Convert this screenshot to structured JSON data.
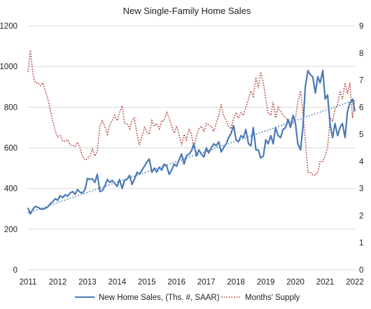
{
  "chart_data": {
    "type": "line",
    "title": "New Single-Family Home Sales",
    "xlim": [
      2011,
      2022
    ],
    "x_ticks": [
      "2011",
      "2012",
      "2013",
      "2014",
      "2015",
      "2016",
      "2017",
      "2018",
      "2019",
      "2020",
      "2021",
      "2022"
    ],
    "y_left": {
      "lim": [
        0,
        1200
      ],
      "ticks": [
        "0",
        "200",
        "400",
        "600",
        "800",
        "1000",
        "1200"
      ]
    },
    "y_right": {
      "lim": [
        0,
        9
      ],
      "ticks": [
        "0",
        "1",
        "2",
        "3",
        "4",
        "5",
        "6",
        "7",
        "8",
        "9"
      ]
    },
    "legend_position": "bottom",
    "series": [
      {
        "name": "New Home Sales, (Ths. #, SAAR)",
        "axis": "left",
        "color": "#4a7ab5",
        "style": "solid",
        "x": [
          2011.0,
          2011.08,
          2011.17,
          2011.25,
          2011.33,
          2011.42,
          2011.5,
          2011.58,
          2011.67,
          2011.75,
          2011.83,
          2011.92,
          2012.0,
          2012.08,
          2012.17,
          2012.25,
          2012.33,
          2012.42,
          2012.5,
          2012.58,
          2012.67,
          2012.75,
          2012.83,
          2012.92,
          2013.0,
          2013.08,
          2013.17,
          2013.25,
          2013.33,
          2013.42,
          2013.5,
          2013.58,
          2013.67,
          2013.75,
          2013.83,
          2013.92,
          2014.0,
          2014.08,
          2014.17,
          2014.25,
          2014.33,
          2014.42,
          2014.5,
          2014.58,
          2014.67,
          2014.75,
          2014.83,
          2014.92,
          2015.0,
          2015.08,
          2015.17,
          2015.25,
          2015.33,
          2015.42,
          2015.5,
          2015.58,
          2015.67,
          2015.75,
          2015.83,
          2015.92,
          2016.0,
          2016.08,
          2016.17,
          2016.25,
          2016.33,
          2016.42,
          2016.5,
          2016.58,
          2016.67,
          2016.75,
          2016.83,
          2016.92,
          2017.0,
          2017.08,
          2017.17,
          2017.25,
          2017.33,
          2017.42,
          2017.5,
          2017.58,
          2017.67,
          2017.75,
          2017.83,
          2017.92,
          2018.0,
          2018.08,
          2018.17,
          2018.25,
          2018.33,
          2018.42,
          2018.5,
          2018.58,
          2018.67,
          2018.75,
          2018.83,
          2018.92,
          2019.0,
          2019.08,
          2019.17,
          2019.25,
          2019.33,
          2019.42,
          2019.5,
          2019.58,
          2019.67,
          2019.75,
          2019.83,
          2019.92,
          2020.0,
          2020.08,
          2020.17,
          2020.25,
          2020.33,
          2020.42,
          2020.5,
          2020.58,
          2020.67,
          2020.75,
          2020.83,
          2020.92,
          2021.0,
          2021.08,
          2021.17,
          2021.25,
          2021.33,
          2021.42,
          2021.5,
          2021.58,
          2021.67,
          2021.75,
          2021.83,
          2021.92,
          2022.0
        ],
        "values": [
          305,
          275,
          300,
          312,
          308,
          300,
          298,
          302,
          310,
          325,
          335,
          350,
          342,
          365,
          355,
          370,
          362,
          378,
          385,
          372,
          395,
          382,
          378,
          395,
          450,
          445,
          448,
          430,
          470,
          385,
          390,
          410,
          445,
          430,
          440,
          425,
          410,
          445,
          400,
          440,
          445,
          465,
          420,
          445,
          480,
          470,
          490,
          510,
          530,
          545,
          480,
          500,
          480,
          505,
          490,
          520,
          510,
          470,
          490,
          520,
          510,
          540,
          570,
          520,
          560,
          570,
          585,
          620,
          560,
          590,
          570,
          555,
          600,
          575,
          600,
          620,
          610,
          630,
          580,
          600,
          620,
          650,
          670,
          710,
          640,
          630,
          660,
          650,
          690,
          620,
          610,
          700,
          590,
          590,
          550,
          560,
          640,
          620,
          660,
          620,
          700,
          660,
          650,
          690,
          700,
          740,
          700,
          760,
          720,
          620,
          590,
          700,
          900,
          980,
          960,
          950,
          870,
          950,
          920,
          980,
          840,
          860,
          710,
          650,
          720,
          660,
          700,
          720,
          650,
          780,
          820,
          840,
          780
        ]
      },
      {
        "name": "Months' Supply",
        "axis": "right",
        "color": "#b0413e",
        "style": "dotted",
        "x": [
          2011.0,
          2011.08,
          2011.17,
          2011.25,
          2011.33,
          2011.42,
          2011.5,
          2011.58,
          2011.67,
          2011.75,
          2011.83,
          2011.92,
          2012.0,
          2012.08,
          2012.17,
          2012.25,
          2012.33,
          2012.42,
          2012.5,
          2012.58,
          2012.67,
          2012.75,
          2012.83,
          2012.92,
          2013.0,
          2013.08,
          2013.17,
          2013.25,
          2013.33,
          2013.42,
          2013.5,
          2013.58,
          2013.67,
          2013.75,
          2013.83,
          2013.92,
          2014.0,
          2014.08,
          2014.17,
          2014.25,
          2014.33,
          2014.42,
          2014.5,
          2014.58,
          2014.67,
          2014.75,
          2014.83,
          2014.92,
          2015.0,
          2015.08,
          2015.17,
          2015.25,
          2015.33,
          2015.42,
          2015.5,
          2015.58,
          2015.67,
          2015.75,
          2015.83,
          2015.92,
          2016.0,
          2016.08,
          2016.17,
          2016.25,
          2016.33,
          2016.42,
          2016.5,
          2016.58,
          2016.67,
          2016.75,
          2016.83,
          2016.92,
          2017.0,
          2017.08,
          2017.17,
          2017.25,
          2017.33,
          2017.42,
          2017.5,
          2017.58,
          2017.67,
          2017.75,
          2017.83,
          2017.92,
          2018.0,
          2018.08,
          2018.17,
          2018.25,
          2018.33,
          2018.42,
          2018.5,
          2018.58,
          2018.67,
          2018.75,
          2018.83,
          2018.92,
          2019.0,
          2019.08,
          2019.17,
          2019.25,
          2019.33,
          2019.42,
          2019.5,
          2019.58,
          2019.67,
          2019.75,
          2019.83,
          2019.92,
          2020.0,
          2020.08,
          2020.17,
          2020.25,
          2020.33,
          2020.42,
          2020.5,
          2020.58,
          2020.67,
          2020.75,
          2020.83,
          2020.92,
          2021.0,
          2021.08,
          2021.17,
          2021.25,
          2021.33,
          2021.42,
          2021.5,
          2021.58,
          2021.67,
          2021.75,
          2021.83,
          2021.92,
          2022.0
        ],
        "values": [
          7.3,
          8.1,
          7.2,
          6.9,
          6.9,
          6.8,
          6.9,
          6.6,
          6.3,
          5.9,
          5.5,
          5.1,
          4.9,
          4.95,
          4.75,
          4.75,
          4.8,
          4.6,
          4.6,
          4.55,
          4.7,
          4.5,
          4.2,
          4.05,
          4.1,
          4.2,
          4.45,
          4.2,
          4.35,
          5.3,
          5.5,
          5.3,
          5.0,
          5.35,
          5.5,
          5.7,
          5.5,
          5.8,
          6.05,
          5.4,
          5.4,
          5.2,
          5.5,
          5.6,
          5.0,
          4.6,
          4.9,
          5.25,
          5.1,
          5.0,
          5.5,
          5.3,
          5.4,
          5.2,
          5.5,
          5.5,
          5.8,
          5.6,
          5.3,
          5.05,
          5.3,
          5.0,
          4.6,
          5.0,
          4.8,
          5.2,
          5.0,
          4.5,
          4.95,
          5.2,
          5.3,
          5.1,
          5.4,
          5.35,
          5.3,
          5.1,
          5.4,
          5.7,
          6.1,
          5.7,
          5.5,
          5.3,
          5.2,
          5.6,
          5.8,
          5.6,
          5.8,
          5.7,
          6.0,
          6.3,
          6.6,
          6.4,
          7.1,
          6.7,
          7.3,
          6.9,
          6.3,
          5.8,
          5.7,
          6.2,
          5.6,
          6.0,
          5.85,
          5.7,
          5.6,
          5.5,
          5.5,
          5.4,
          5.6,
          6.2,
          6.6,
          5.8,
          4.8,
          3.6,
          3.6,
          3.5,
          3.5,
          3.6,
          4.0,
          4.0,
          4.2,
          4.5,
          5.6,
          5.5,
          5.9,
          6.1,
          6.6,
          6.3,
          6.9,
          6.5,
          6.9,
          5.6,
          6.3
        ]
      },
      {
        "name": "",
        "axis": "left",
        "color": "#4a7ab5",
        "style": "dotted-trend",
        "x": [
          2011.0,
          2022.0
        ],
        "values": [
          280,
          835
        ]
      }
    ]
  }
}
